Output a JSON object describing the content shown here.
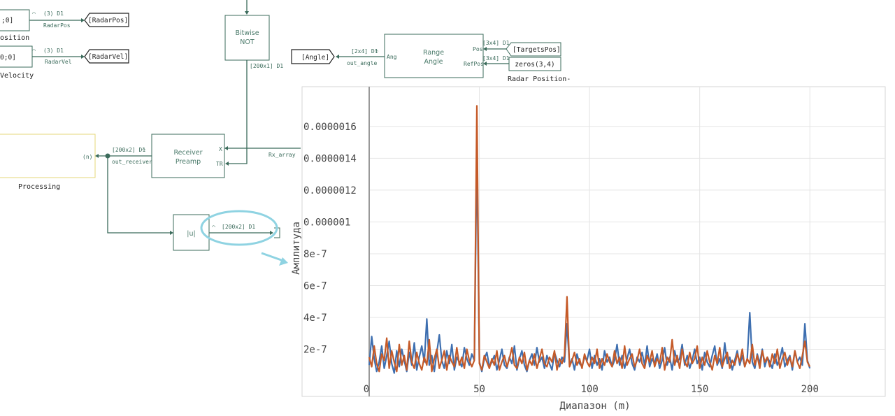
{
  "diagram": {
    "blocks": {
      "const1_value": ";0]",
      "const1_caption": "osition",
      "const2_value": "0;0]",
      "const2_caption": "Velocity",
      "bitwise_not": [
        "Bitwise",
        "NOT"
      ],
      "range_angle": [
        "Range",
        "Angle"
      ],
      "receiver_preamp": [
        "Receiver",
        "Preamp"
      ],
      "abs_block": "|u|",
      "processing_port": "(n)",
      "processing_caption": "Processing",
      "range_angle_port_ang": "Ang",
      "range_angle_port_pos": "Pos",
      "range_angle_port_refpos": "RefPos",
      "receiver_port_x": "X",
      "receiver_port_tr": "TR",
      "zeros_block": "zeros(3,4)",
      "radar_position_caption": "Radar Position-"
    },
    "signals": {
      "radarpos_dim": "(3) D1",
      "radarpos_name": "RadarPos",
      "radarvel_dim": "(3) D1",
      "radarvel_name": "RadarVel",
      "bitwise_out_dim": "[200x1] D1",
      "angle_dim": "[2x4] D1",
      "angle_name": "out_angle",
      "targets_dim": "[3x4] D1",
      "zeros_dim": "[3x4] D1",
      "receiver_out_dim": "[200x2] D1",
      "receiver_out_name": "out_receiver",
      "rx_array_name": "Rx_array",
      "abs_out_dim": "[200x2] D1"
    },
    "tags": {
      "radarpos": "[RadarPos]",
      "radarvel": "[RadarVel]",
      "angle": "[Angle]",
      "targetspos": "[TargetsPos]"
    }
  },
  "chart_data": {
    "type": "line",
    "xlabel": "Диапазон (m)",
    "ylabel": "Амплитуда",
    "xlim": [
      0,
      205
    ],
    "ylim": [
      0,
      1.85e-06
    ],
    "x_ticks": [
      0,
      50,
      100,
      150,
      200
    ],
    "x_tick_labels": [
      "0",
      "50",
      "100",
      "150",
      "200"
    ],
    "y_ticks": [
      2e-07,
      4e-07,
      6e-07,
      8e-07,
      1e-06,
      1.2e-06,
      1.4e-06,
      1.6e-06
    ],
    "y_tick_labels": [
      "2e-7",
      "4e-7",
      "6e-7",
      "8e-7",
      "0.000001",
      "0.0000012",
      "0.0000014",
      "0.0000016"
    ],
    "grid": true,
    "colors": [
      "#3e6fb0",
      "#c55a28"
    ],
    "series": [
      {
        "values": [
          1e-07,
          2.8e-07,
          1.4e-07,
          6e-08,
          1.2e-07,
          2.2e-07,
          8e-08,
          1.6e-07,
          2.5e-07,
          1.1e-07,
          5e-08,
          1.9e-07,
          9e-08,
          2e-07,
          1.3e-07,
          6e-08,
          1.8e-07,
          1e-07,
          2.4e-07,
          7e-08,
          1.5e-07,
          2.2e-07,
          1.2e-07,
          3.9e-07,
          1e-07,
          1.6e-07,
          6e-08,
          1.8e-07,
          2.9e-07,
          1.3e-07,
          8e-08,
          1.9e-07,
          1.1e-07,
          2.3e-07,
          7e-08,
          1.5e-07,
          1.2e-07,
          9e-08,
          2.1e-07,
          1.4e-07,
          1e-07,
          1.7e-07,
          1.3e-07,
          1.46e-06,
          1.2e-07,
          6e-08,
          1.4e-07,
          1.8e-07,
          9e-08,
          1.2e-07,
          1.6e-07,
          7e-08,
          1.3e-07,
          2e-07,
          1e-07,
          8e-08,
          1.5e-07,
          1.1e-07,
          2.2e-07,
          7e-08,
          1.4e-07,
          1.9e-07,
          1e-07,
          6e-08,
          1.3e-07,
          1.7e-07,
          1e-07,
          2.1e-07,
          1.2e-07,
          1.5e-07,
          8e-08,
          1.6e-07,
          1.1e-07,
          7e-08,
          1.8e-07,
          1.3e-07,
          9e-08,
          1.5e-07,
          1.2e-07,
          3.6e-07,
          1e-07,
          1.4e-07,
          7e-08,
          1.7e-07,
          1.1e-07,
          9e-08,
          1.5e-07,
          1.3e-07,
          2e-07,
          8e-08,
          1.6e-07,
          1e-07,
          1.4e-07,
          7e-08,
          1.9e-07,
          1.2e-07,
          1.5e-07,
          9e-08,
          1.3e-07,
          2.3e-07,
          1e-07,
          1.6e-07,
          8e-08,
          1.4e-07,
          2e-07,
          1.1e-07,
          7e-08,
          1.5e-07,
          1.2e-07,
          1.8e-07,
          1e-07,
          2.2e-07,
          9e-08,
          1.4e-07,
          1.1e-07,
          1.7e-07,
          8e-08,
          1.3e-07,
          2.1e-07,
          1e-07,
          1.5e-07,
          7e-08,
          1.9e-07,
          1.2e-07,
          1.4e-07,
          2.3e-07,
          1e-07,
          1.6e-07,
          8e-08,
          1.3e-07,
          2e-07,
          1.1e-07,
          1.5e-07,
          7e-08,
          1.8e-07,
          1.2e-07,
          9e-08,
          1.6e-07,
          2.2e-07,
          1e-07,
          1.4e-07,
          8e-08,
          2.4e-07,
          1.1e-07,
          1.5e-07,
          7e-08,
          1.3e-07,
          1.9e-07,
          1e-07,
          1.6e-07,
          9e-08,
          1.4e-07,
          4.3e-07,
          1.2e-07,
          8e-08,
          1.7e-07,
          1.1e-07,
          2e-07,
          9e-08,
          1.5e-07,
          1.2e-07,
          8e-08,
          1.7e-07,
          1e-07,
          1.4e-07,
          2.1e-07,
          9e-08,
          1.3e-07,
          1.6e-07,
          7e-08,
          1.9e-07,
          1.2e-07,
          1.5e-07,
          1e-07,
          3.6e-07,
          1.3e-07,
          8e-08
        ]
      },
      {
        "values": [
          1.5e-07,
          9e-08,
          2.2e-07,
          1.1e-07,
          6e-08,
          1.7e-07,
          1.3e-07,
          2.7e-07,
          8e-08,
          1.9e-07,
          1.2e-07,
          6e-08,
          2.3e-07,
          1e-07,
          1.6e-07,
          7e-08,
          2.5e-07,
          1.2e-07,
          8e-08,
          1.8e-07,
          1.1e-07,
          7e-08,
          1.5e-07,
          1e-07,
          2.6e-07,
          6e-08,
          1.4e-07,
          2e-07,
          8e-08,
          1.3e-07,
          1.9e-07,
          7e-08,
          1.6e-07,
          1.2e-07,
          9e-08,
          2.1e-07,
          1e-07,
          1.5e-07,
          8e-08,
          2e-07,
          1.3e-07,
          9e-08,
          1.3e-07,
          1.73e-06,
          1.1e-07,
          7e-08,
          1.6e-07,
          1.2e-07,
          8e-08,
          1.4e-07,
          1e-07,
          1.9e-07,
          7e-08,
          1.2e-07,
          1.6e-07,
          9e-08,
          1.4e-07,
          2.1e-07,
          1e-07,
          8e-08,
          1.5e-07,
          1.1e-07,
          1.8e-07,
          7e-08,
          1.3e-07,
          1e-07,
          1.7e-07,
          8e-08,
          1.4e-07,
          2e-07,
          1.1e-07,
          9e-08,
          1.5e-07,
          1.2e-07,
          1.9e-07,
          7e-08,
          1.4e-07,
          1.1e-07,
          1.6e-07,
          5.3e-07,
          9e-08,
          1.3e-07,
          1.8e-07,
          1e-07,
          1.4e-07,
          8e-08,
          1.7e-07,
          1.2e-07,
          9e-08,
          1.5e-07,
          1.1e-07,
          2e-07,
          8e-08,
          1.4e-07,
          1e-07,
          1.7e-07,
          1.2e-07,
          9e-08,
          1.9e-07,
          1.1e-07,
          1.5e-07,
          8e-08,
          2.2e-07,
          1e-07,
          1.4e-07,
          1.7e-07,
          9e-08,
          1.3e-07,
          2e-07,
          1.1e-07,
          8e-08,
          1.6e-07,
          1.2e-07,
          1.9e-07,
          9e-08,
          1.4e-07,
          1.1e-07,
          2.1e-07,
          7e-08,
          1.5e-07,
          1.2e-07,
          2.6e-07,
          1e-07,
          1.6e-07,
          8e-08,
          2e-07,
          1.2e-07,
          9e-08,
          1.8e-07,
          1.1e-07,
          1.4e-07,
          2.2e-07,
          8e-08,
          1.5e-07,
          1e-07,
          1.9e-07,
          1.2e-07,
          7e-08,
          1.6e-07,
          1.1e-07,
          2.1e-07,
          9e-08,
          1.4e-07,
          1.8e-07,
          8e-08,
          1.3e-07,
          1e-07,
          1.7e-07,
          1.2e-07,
          2e-07,
          9e-08,
          1.4e-07,
          1.1e-07,
          2.3e-07,
          1e-07,
          1.6e-07,
          8e-08,
          1.9e-07,
          1.2e-07,
          1.5e-07,
          9e-08,
          1.7e-07,
          1.1e-07,
          2e-07,
          8e-08,
          1.4e-07,
          1.8e-07,
          1e-07,
          1.5e-07,
          9e-08,
          1.9e-07,
          1.2e-07,
          8e-08,
          1.6e-07,
          2.5e-07,
          1.2e-07,
          9e-08
        ]
      }
    ]
  }
}
